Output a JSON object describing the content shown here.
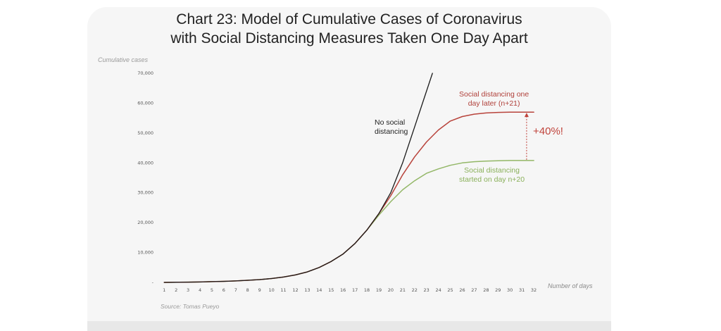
{
  "colors": {
    "no_distancing": "#1a1a1a",
    "later": "#b8433b",
    "earlier": "#93b767",
    "arrow": "#c0443c"
  },
  "annotations": {
    "no_distancing": [
      "No social",
      "distancing"
    ],
    "later": [
      "Social distancing one",
      "day later (n+21)"
    ],
    "earlier": [
      "Social distancing",
      "started on day n+20"
    ],
    "increase": "+40%!"
  },
  "source": "Source: Tomas Pueyo",
  "chart_data": {
    "type": "line",
    "title": [
      "Chart 23: Model of Cumulative Cases of Coronavirus",
      "with Social Distancing Measures Taken One Day Apart"
    ],
    "xlabel": "Number of days",
    "ylabel": "Cumulative cases",
    "xlim": [
      0,
      33
    ],
    "ylim": [
      0,
      70000
    ],
    "xticks": [
      1,
      2,
      3,
      4,
      5,
      6,
      7,
      8,
      9,
      10,
      11,
      12,
      13,
      14,
      15,
      16,
      17,
      18,
      19,
      20,
      21,
      22,
      23,
      24,
      25,
      26,
      27,
      28,
      29,
      30,
      31,
      32
    ],
    "yticks": [
      0,
      10000,
      20000,
      30000,
      40000,
      50000,
      60000,
      70000
    ],
    "ytick_labels": [
      "-",
      "10,000",
      "20,000",
      "30,000",
      "40,000",
      "50,000",
      "60,000",
      "70,000"
    ],
    "grid": false,
    "legend": "none",
    "series": [
      {
        "x": [
          1,
          2,
          3,
          4,
          5,
          6,
          7,
          8,
          9,
          10,
          11,
          12,
          13,
          14,
          15,
          16,
          17,
          18,
          19,
          20,
          21,
          22,
          23,
          23.5
        ],
        "values": [
          0,
          50,
          100,
          150,
          250,
          350,
          500,
          700,
          950,
          1300,
          1800,
          2500,
          3500,
          5000,
          7000,
          9500,
          13000,
          17500,
          23000,
          30000,
          40000,
          52000,
          64000,
          70000
        ]
      },
      {
        "x": [
          1,
          2,
          3,
          4,
          5,
          6,
          7,
          8,
          9,
          10,
          11,
          12,
          13,
          14,
          15,
          16,
          17,
          18,
          19,
          20,
          21,
          22,
          23,
          24,
          25,
          26,
          27,
          28,
          29,
          30,
          31,
          32
        ],
        "values": [
          0,
          50,
          100,
          150,
          250,
          350,
          500,
          700,
          950,
          1300,
          1800,
          2500,
          3500,
          5000,
          7000,
          9500,
          13000,
          17500,
          23000,
          29000,
          36000,
          42000,
          47000,
          51000,
          54000,
          55500,
          56300,
          56700,
          56900,
          57000,
          57000,
          57000
        ]
      },
      {
        "x": [
          1,
          2,
          3,
          4,
          5,
          6,
          7,
          8,
          9,
          10,
          11,
          12,
          13,
          14,
          15,
          16,
          17,
          18,
          19,
          20,
          21,
          22,
          23,
          24,
          25,
          26,
          27,
          28,
          29,
          30,
          31,
          32
        ],
        "values": [
          0,
          50,
          100,
          150,
          250,
          350,
          500,
          700,
          950,
          1300,
          1800,
          2500,
          3500,
          5000,
          7000,
          9500,
          13000,
          17500,
          22500,
          27000,
          31000,
          34000,
          36500,
          38000,
          39200,
          40000,
          40400,
          40600,
          40700,
          40800,
          40800,
          40800
        ]
      }
    ],
    "increase_marker": {
      "x": 31.4,
      "from": 40800,
      "to": 57000
    }
  }
}
